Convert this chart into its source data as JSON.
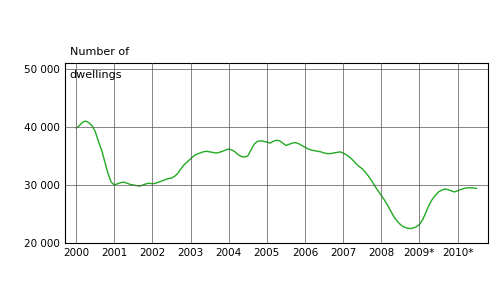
{
  "title_line1": "Number of",
  "title_line2": "dwellings",
  "ylim": [
    20000,
    51000
  ],
  "yticks": [
    20000,
    30000,
    40000,
    50000
  ],
  "ytick_labels": [
    "20 000",
    "30 000",
    "40 000",
    "50 000"
  ],
  "xtick_labels": [
    "2000",
    "2001",
    "2002",
    "2003",
    "2004",
    "2005",
    "2006",
    "2007",
    "2008",
    "2009*",
    "2010*"
  ],
  "line_color": "#22aa22",
  "background_color": "#ffffff",
  "x": [
    0.0,
    0.083,
    0.167,
    0.25,
    0.333,
    0.417,
    0.5,
    0.583,
    0.667,
    0.75,
    0.833,
    0.917,
    1.0,
    1.083,
    1.167,
    1.25,
    1.333,
    1.417,
    1.5,
    1.583,
    1.667,
    1.75,
    1.833,
    1.917,
    2.0,
    2.083,
    2.167,
    2.25,
    2.333,
    2.417,
    2.5,
    2.583,
    2.667,
    2.75,
    2.833,
    2.917,
    3.0,
    3.083,
    3.167,
    3.25,
    3.333,
    3.417,
    3.5,
    3.583,
    3.667,
    3.75,
    3.833,
    3.917,
    4.0,
    4.083,
    4.167,
    4.25,
    4.333,
    4.417,
    4.5,
    4.583,
    4.667,
    4.75,
    4.833,
    4.917,
    5.0,
    5.083,
    5.167,
    5.25,
    5.333,
    5.417,
    5.5,
    5.583,
    5.667,
    5.75,
    5.833,
    5.917,
    6.0,
    6.083,
    6.167,
    6.25,
    6.333,
    6.417,
    6.5,
    6.583,
    6.667,
    6.75,
    6.833,
    6.917,
    7.0,
    7.083,
    7.167,
    7.25,
    7.333,
    7.417,
    7.5,
    7.583,
    7.667,
    7.75,
    7.833,
    7.917,
    8.0,
    8.083,
    8.167,
    8.25,
    8.333,
    8.417,
    8.5,
    8.583,
    8.667,
    8.75,
    8.833,
    8.917,
    9.0,
    9.083,
    9.167,
    9.25,
    9.333,
    9.417,
    9.5,
    9.583,
    9.667,
    9.75,
    9.833,
    9.917,
    10.0,
    10.083,
    10.167,
    10.25,
    10.333,
    10.417,
    10.5
  ],
  "y": [
    39800,
    40200,
    40800,
    41000,
    40700,
    40200,
    39200,
    37500,
    36000,
    34000,
    32000,
    30500,
    30000,
    30200,
    30400,
    30500,
    30300,
    30100,
    30000,
    29900,
    29800,
    30000,
    30200,
    30300,
    30200,
    30300,
    30500,
    30700,
    30900,
    31100,
    31200,
    31500,
    32000,
    32800,
    33500,
    34000,
    34500,
    35000,
    35300,
    35500,
    35700,
    35800,
    35700,
    35600,
    35500,
    35600,
    35800,
    36000,
    36200,
    36000,
    35700,
    35200,
    34900,
    34800,
    35000,
    36000,
    37000,
    37500,
    37600,
    37500,
    37400,
    37200,
    37500,
    37700,
    37600,
    37200,
    36800,
    37000,
    37200,
    37300,
    37100,
    36800,
    36500,
    36200,
    36000,
    35900,
    35800,
    35700,
    35500,
    35400,
    35400,
    35500,
    35600,
    35700,
    35500,
    35200,
    34800,
    34300,
    33700,
    33200,
    32800,
    32200,
    31500,
    30700,
    29800,
    29000,
    28200,
    27400,
    26500,
    25500,
    24500,
    23800,
    23200,
    22800,
    22600,
    22500,
    22600,
    22800,
    23200,
    24000,
    25200,
    26500,
    27500,
    28200,
    28800,
    29100,
    29300,
    29200,
    29000,
    28800,
    29000,
    29200,
    29400,
    29500,
    29500,
    29500,
    29400
  ]
}
